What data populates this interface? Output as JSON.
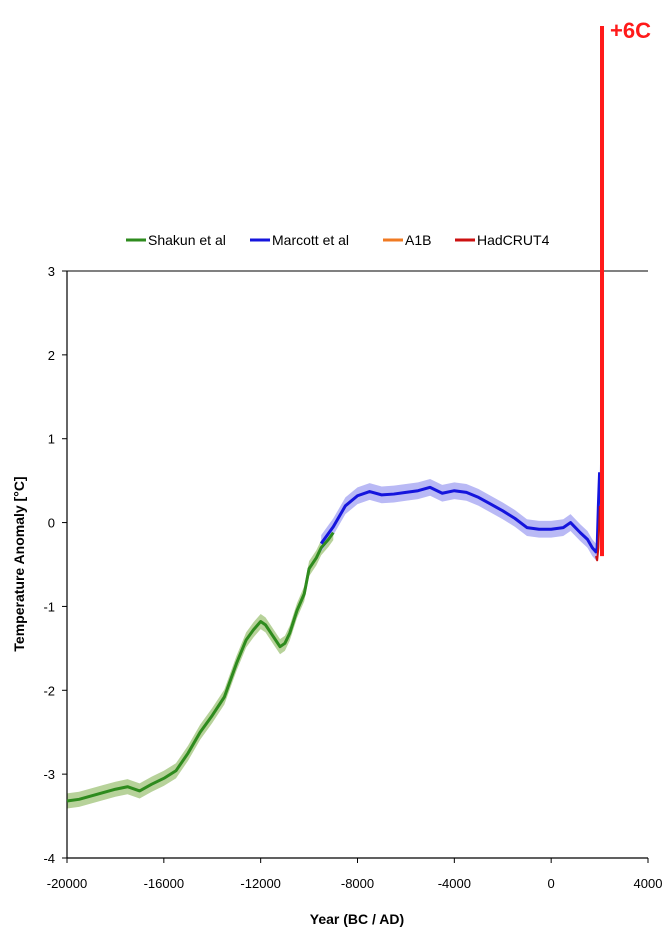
{
  "chart_data": {
    "type": "line",
    "xlabel": "Year (BC / AD)",
    "ylabel": "Temperature Anomaly [°C]",
    "xlim": [
      -20000,
      4000
    ],
    "ylim": [
      -4,
      3
    ],
    "xticks": [
      -20000,
      -16000,
      -12000,
      -8000,
      -4000,
      0,
      4000
    ],
    "yticks": [
      3,
      2,
      1,
      0,
      -1,
      -2,
      -3,
      -4
    ],
    "legend_position": "top",
    "annotation": {
      "text": "+6C",
      "color": "#ff1a1a"
    },
    "series": [
      {
        "name": "Shakun et al",
        "color": "#2e8b1e",
        "band_color": "#b7d29a",
        "band_width": 0.09,
        "x": [
          -20000,
          -19500,
          -19000,
          -18500,
          -18000,
          -17500,
          -17000,
          -16500,
          -16000,
          -15500,
          -15000,
          -14500,
          -14000,
          -13500,
          -13000,
          -12600,
          -12300,
          -12000,
          -11800,
          -11500,
          -11200,
          -11000,
          -10800,
          -10500,
          -10200,
          -10000,
          -9700,
          -9500,
          -9200,
          -9000
        ],
        "y": [
          -3.32,
          -3.3,
          -3.26,
          -3.22,
          -3.18,
          -3.15,
          -3.2,
          -3.12,
          -3.05,
          -2.96,
          -2.75,
          -2.5,
          -2.3,
          -2.08,
          -1.68,
          -1.4,
          -1.28,
          -1.18,
          -1.22,
          -1.35,
          -1.48,
          -1.44,
          -1.32,
          -1.05,
          -0.85,
          -0.55,
          -0.42,
          -0.3,
          -0.2,
          -0.12
        ]
      },
      {
        "name": "Marcott et al",
        "color": "#1515dd",
        "band_color": "#b9b9f5",
        "band_width": 0.1,
        "x": [
          -9500,
          -9000,
          -8500,
          -8000,
          -7500,
          -7000,
          -6500,
          -6000,
          -5500,
          -5000,
          -4500,
          -4000,
          -3500,
          -3000,
          -2500,
          -2000,
          -1500,
          -1000,
          -500,
          0,
          500,
          800,
          1200,
          1500,
          1700,
          1850,
          1900,
          1950,
          2000
        ],
        "y": [
          -0.25,
          -0.05,
          0.2,
          0.32,
          0.37,
          0.33,
          0.34,
          0.36,
          0.38,
          0.42,
          0.35,
          0.38,
          0.36,
          0.3,
          0.22,
          0.14,
          0.05,
          -0.06,
          -0.08,
          -0.08,
          -0.06,
          0.0,
          -0.12,
          -0.2,
          -0.3,
          -0.35,
          -0.3,
          0.2,
          0.6
        ]
      },
      {
        "name": "A1B",
        "color": "#f07a22",
        "band_color": "",
        "band_width": 0,
        "x": [
          2000,
          2030,
          2060,
          2100
        ],
        "y": [
          0.55,
          1.6,
          3.0,
          6.0
        ]
      },
      {
        "name": "HadCRUT4",
        "color": "#cc1111",
        "band_color": "",
        "band_width": 0,
        "x": [
          1850,
          1900,
          1950,
          2000,
          2012
        ],
        "y": [
          -0.4,
          -0.45,
          -0.3,
          0.1,
          0.2
        ]
      }
    ]
  }
}
